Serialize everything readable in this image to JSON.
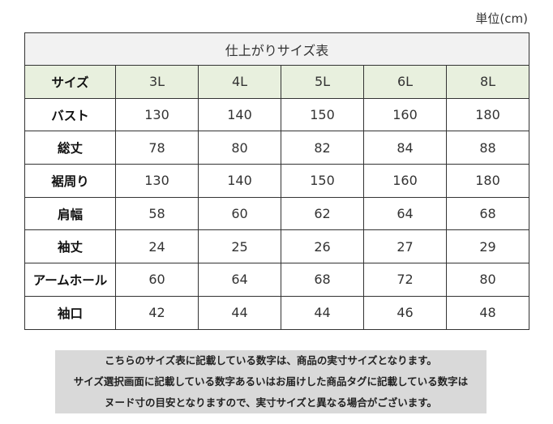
{
  "unit_label": "単位(cm)",
  "table": {
    "title": "仕上がりサイズ表",
    "header_label": "サイズ",
    "sizes": [
      "3L",
      "4L",
      "5L",
      "6L",
      "8L"
    ],
    "rows": [
      {
        "label": "バスト",
        "values": [
          "130",
          "140",
          "150",
          "160",
          "180"
        ]
      },
      {
        "label": "総丈",
        "values": [
          "78",
          "80",
          "82",
          "84",
          "88"
        ]
      },
      {
        "label": "裾周り",
        "values": [
          "130",
          "140",
          "150",
          "160",
          "180"
        ]
      },
      {
        "label": "肩幅",
        "values": [
          "58",
          "60",
          "62",
          "64",
          "68"
        ]
      },
      {
        "label": "袖丈",
        "values": [
          "24",
          "25",
          "26",
          "27",
          "29"
        ]
      },
      {
        "label": "アームホール",
        "values": [
          "60",
          "64",
          "68",
          "72",
          "80"
        ]
      },
      {
        "label": "袖口",
        "values": [
          "42",
          "44",
          "44",
          "46",
          "48"
        ]
      }
    ]
  },
  "notice": {
    "lines": [
      "こちらのサイズ表に記載している数字は、商品の実寸サイズとなります。",
      "サイズ選択画面に記載している数字あるいはお届けした商品タグに記載している数字は",
      "ヌード寸の目安となりますので、実寸サイズと異なる場合がございます。"
    ]
  },
  "colors": {
    "header_row_bg": "#e8f0de",
    "title_row_bg": "#f2f2f2",
    "notice_bg": "#d9d9d9",
    "border": "#333333"
  }
}
